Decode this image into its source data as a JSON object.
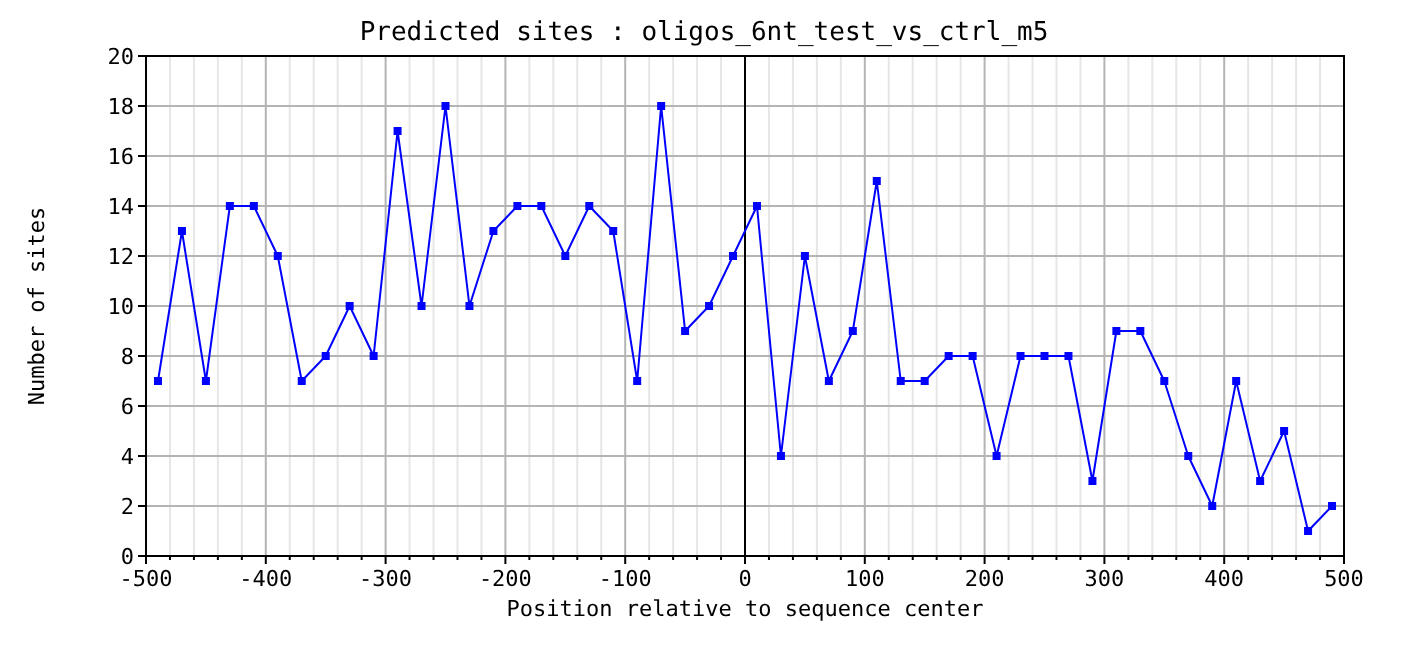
{
  "chart_data": {
    "type": "line",
    "title": "Predicted sites : oligos_6nt_test_vs_ctrl_m5",
    "xlabel": "Position relative to sequence center",
    "ylabel": "Number of sites",
    "x": [
      -490,
      -470,
      -450,
      -430,
      -410,
      -390,
      -370,
      -350,
      -330,
      -310,
      -290,
      -270,
      -250,
      -230,
      -210,
      -190,
      -170,
      -150,
      -130,
      -110,
      -90,
      -70,
      -50,
      -30,
      -10,
      10,
      30,
      50,
      70,
      90,
      110,
      130,
      150,
      170,
      190,
      210,
      230,
      250,
      270,
      290,
      310,
      330,
      350,
      370,
      390,
      410,
      430,
      450,
      470,
      490
    ],
    "series": [
      {
        "color": "#0000ff",
        "values": [
          7,
          13,
          7,
          14,
          14,
          12,
          7,
          8,
          10,
          8,
          17,
          10,
          18,
          10,
          13,
          14,
          14,
          12,
          14,
          13,
          7,
          18,
          9,
          10,
          12,
          14,
          4,
          12,
          7,
          9,
          15,
          7,
          7,
          8,
          8,
          4,
          8,
          8,
          8,
          3,
          9,
          9,
          7,
          4,
          2,
          7,
          3,
          5,
          1,
          2
        ]
      }
    ],
    "xlim": [
      -500,
      500
    ],
    "xticks": [
      -500,
      {
        "value": -480,
        "label": null
      },
      {
        "value": -460,
        "label": null
      },
      {
        "value": -440,
        "label": null
      },
      {
        "value": -420,
        "label": null
      },
      -400,
      {
        "value": -380,
        "label": null
      },
      {
        "value": -360,
        "label": null
      },
      {
        "value": -340,
        "label": null
      },
      {
        "value": -320,
        "label": null
      },
      -300,
      {
        "value": -280,
        "label": null
      },
      {
        "value": -260,
        "label": null
      },
      {
        "value": -240,
        "label": null
      },
      {
        "value": -220,
        "label": null
      },
      -200,
      {
        "value": -180,
        "label": null
      },
      {
        "value": -160,
        "label": null
      },
      {
        "value": -140,
        "label": null
      },
      {
        "value": -120,
        "label": null
      },
      -100,
      {
        "value": -80,
        "label": null
      },
      {
        "value": -60,
        "label": null
      },
      {
        "value": -40,
        "label": null
      },
      {
        "value": -20,
        "label": null
      },
      0,
      {
        "value": 20,
        "label": null
      },
      {
        "value": 40,
        "label": null
      },
      {
        "value": 60,
        "label": null
      },
      {
        "value": 80,
        "label": null
      },
      100,
      {
        "value": 120,
        "label": null
      },
      {
        "value": 140,
        "label": null
      },
      {
        "value": 160,
        "label": null
      },
      {
        "value": 180,
        "label": null
      },
      200,
      {
        "value": 220,
        "label": null
      },
      {
        "value": 240,
        "label": null
      },
      {
        "value": 260,
        "label": null
      },
      {
        "value": 280,
        "label": null
      },
      300,
      {
        "value": 320,
        "label": null
      },
      {
        "value": 340,
        "label": null
      },
      {
        "value": 360,
        "label": null
      },
      {
        "value": 380,
        "label": null
      },
      400,
      {
        "value": 420,
        "label": null
      },
      {
        "value": 440,
        "label": null
      },
      {
        "value": 460,
        "label": null
      },
      {
        "value": 480,
        "label": null
      },
      500
    ],
    "ylim": [
      0,
      20
    ],
    "yticks": [
      0,
      2,
      4,
      6,
      8,
      10,
      12,
      14,
      16,
      18,
      20
    ],
    "grid": true,
    "marker": "square",
    "line_style": "solid",
    "ref_lines": [
      {
        "axis": "x",
        "value": 0,
        "color": "#000000"
      }
    ]
  }
}
